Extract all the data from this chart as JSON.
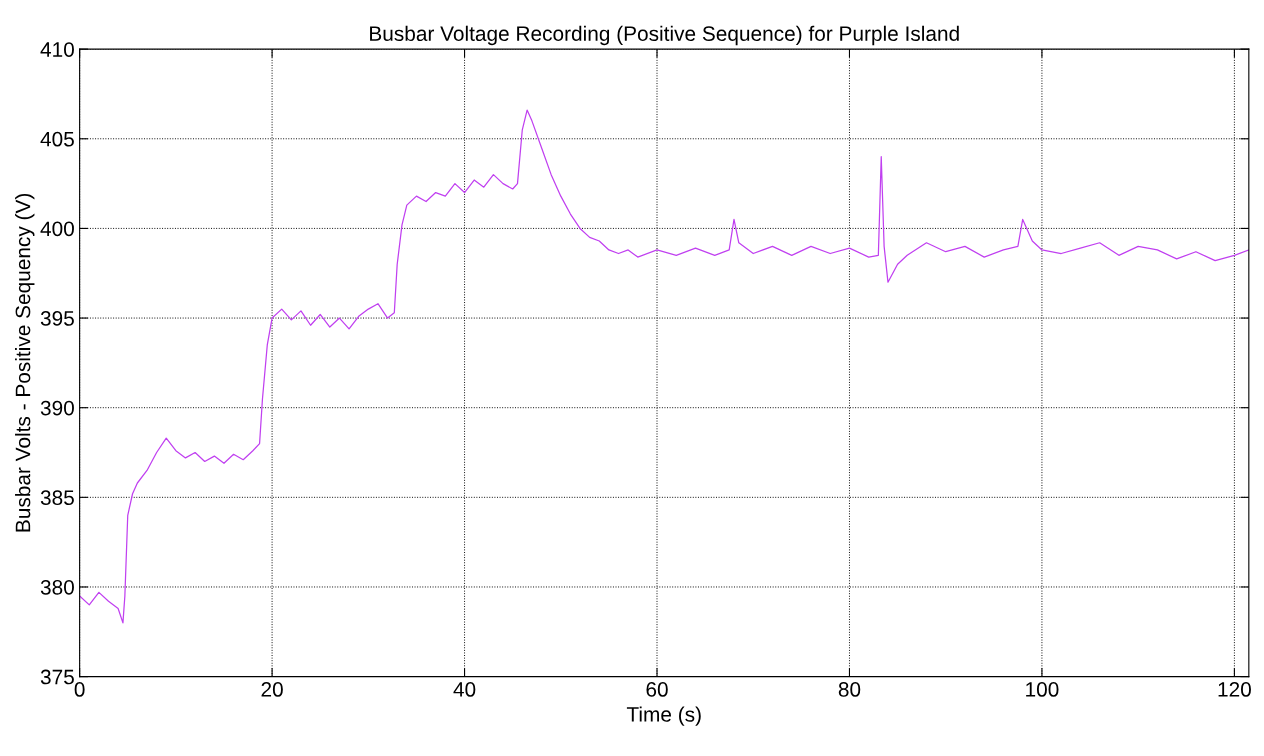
{
  "chart_data": {
    "type": "line",
    "title": "Busbar Voltage Recording (Positive Sequence) for Purple Island",
    "xlabel": "Time (s)",
    "ylabel": "Busbar Volts - Positive Sequency (V)",
    "xlim": [
      0,
      121.5
    ],
    "xticks": [
      0,
      20,
      40,
      60,
      80,
      100,
      120
    ],
    "ylim": [
      375,
      410
    ],
    "yticks": [
      375,
      380,
      385,
      390,
      395,
      400,
      405,
      410
    ],
    "grid": true,
    "series": [
      {
        "color": "#c040f0",
        "x": [
          0,
          1,
          2,
          3,
          4,
          4.5,
          4.7,
          5,
          5.5,
          6,
          7,
          8,
          9,
          10,
          11,
          12,
          13,
          14,
          15,
          16,
          17,
          18,
          18.7,
          19,
          19.5,
          20,
          21,
          22,
          23,
          24,
          25,
          26,
          27,
          28,
          29,
          30,
          31,
          32,
          32.7,
          33,
          33.5,
          34,
          35,
          36,
          37,
          38,
          39,
          40,
          41,
          42,
          43,
          44,
          45,
          45.5,
          46,
          46.5,
          47,
          48,
          49,
          50,
          51,
          52,
          53,
          54,
          55,
          56,
          57,
          58,
          60,
          62,
          64,
          66,
          67.5,
          68,
          68.5,
          70,
          72,
          74,
          76,
          78,
          80,
          82,
          83,
          83.3,
          83.6,
          84,
          85,
          86,
          88,
          90,
          92,
          94,
          96,
          97.5,
          98,
          99,
          100,
          102,
          104,
          106,
          108,
          110,
          112,
          114,
          116,
          118,
          120,
          121.5
        ],
        "values": [
          379.5,
          379,
          379.7,
          379.2,
          378.8,
          378,
          379.5,
          384,
          385.2,
          385.8,
          386.5,
          387.5,
          388.3,
          387.6,
          387.2,
          387.5,
          387,
          387.3,
          386.9,
          387.4,
          387.1,
          387.6,
          388,
          390.5,
          393.5,
          395,
          395.5,
          394.9,
          395.4,
          394.6,
          395.2,
          394.5,
          395,
          394.4,
          395.1,
          395.5,
          395.8,
          395,
          395.3,
          398,
          400.2,
          401.3,
          401.8,
          401.5,
          402,
          401.8,
          402.5,
          402,
          402.7,
          402.3,
          403,
          402.5,
          402.2,
          402.5,
          405.5,
          406.6,
          406,
          404.5,
          403,
          401.8,
          400.8,
          400,
          399.5,
          399.3,
          398.8,
          398.6,
          398.8,
          398.4,
          398.8,
          398.5,
          398.9,
          398.5,
          398.8,
          400.5,
          399.2,
          398.6,
          399,
          398.5,
          399,
          398.6,
          398.9,
          398.4,
          398.5,
          404,
          399,
          397,
          398,
          398.5,
          399.2,
          398.7,
          399,
          398.4,
          398.8,
          399,
          400.5,
          399.3,
          398.8,
          398.6,
          398.9,
          399.2,
          398.5,
          399,
          398.8,
          398.3,
          398.7,
          398.2,
          398.5,
          398.8
        ]
      }
    ]
  }
}
